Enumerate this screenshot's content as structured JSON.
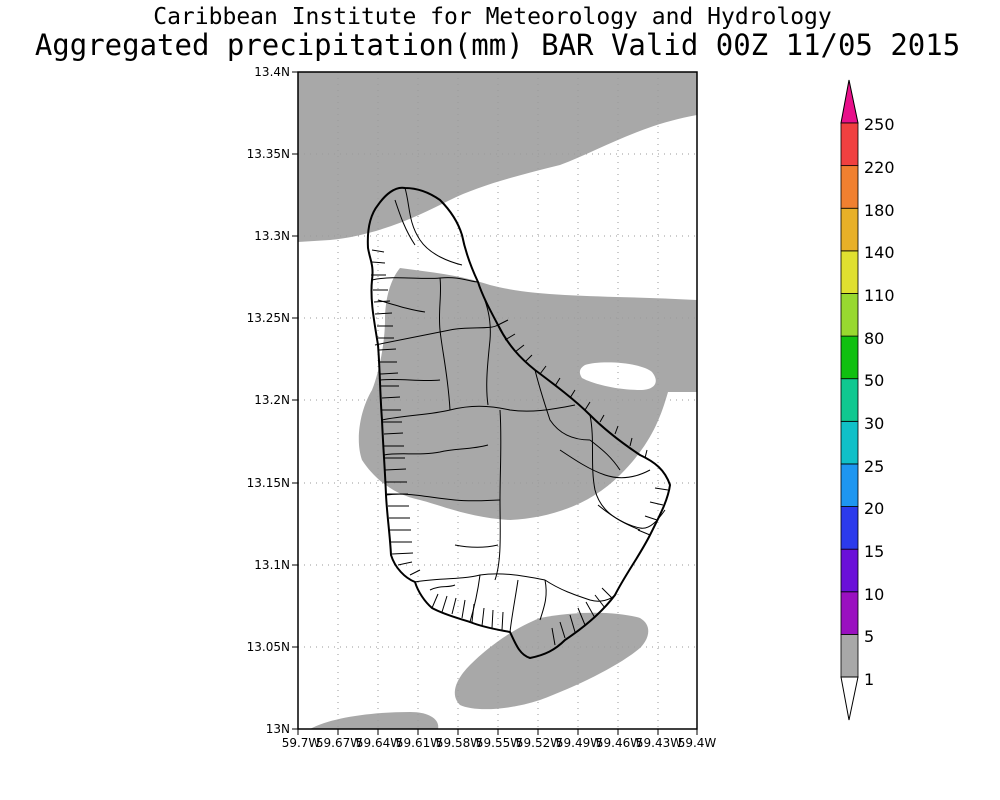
{
  "title_line1": "Caribbean Institute for Meteorology and Hydrology",
  "title_line2": "Aggregated precipitation(mm) BAR Valid 00Z 11/05 2015",
  "map": {
    "lat_ticks": [
      "13N",
      "13.05N",
      "13.1N",
      "13.15N",
      "13.2N",
      "13.25N",
      "13.3N",
      "13.35N",
      "13.4N"
    ],
    "lon_ticks": [
      "59.7W",
      "59.67W",
      "59.64W",
      "59.61W",
      "59.58W",
      "59.55W",
      "59.52W",
      "59.49W",
      "59.46W",
      "59.43W",
      "59.4W"
    ],
    "lat_range": [
      13.0,
      13.4
    ],
    "lon_range": [
      -59.7,
      -59.4
    ],
    "grid": true,
    "shaded_class": "1-5 mm"
  },
  "colorbar": {
    "labels": [
      "1",
      "5",
      "10",
      "15",
      "20",
      "25",
      "30",
      "50",
      "80",
      "110",
      "140",
      "180",
      "220",
      "250"
    ],
    "colors": [
      "#ffffff",
      "#a8a8a8",
      "#9a10c0",
      "#6a10d8",
      "#2c3aec",
      "#1e96f0",
      "#10c0c8",
      "#10c890",
      "#10c010",
      "#98d830",
      "#e0e030",
      "#e8b028",
      "#f08030",
      "#f04040",
      "#e8108a"
    ]
  }
}
